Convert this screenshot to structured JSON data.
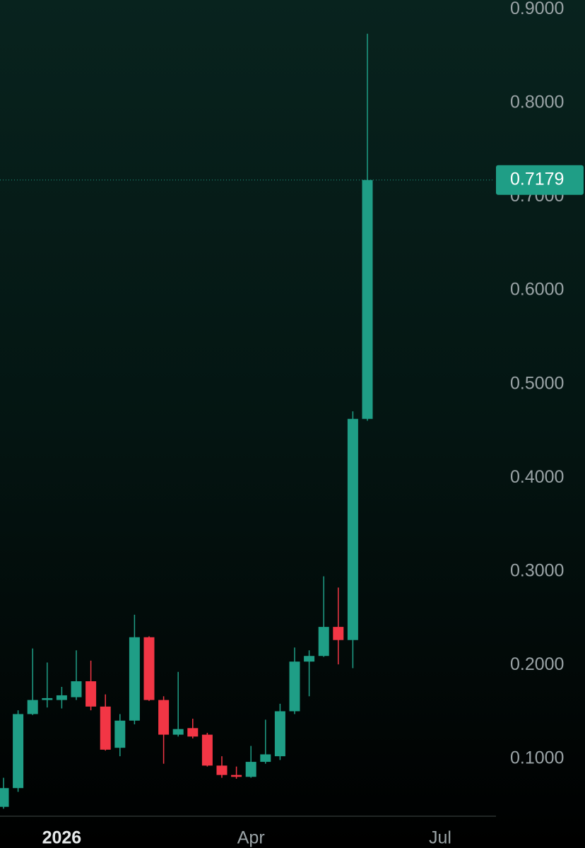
{
  "chart_data": {
    "type": "candlestick",
    "categories": [
      null,
      null,
      null,
      null,
      "2026",
      null,
      null,
      null,
      null,
      null,
      null,
      null,
      null,
      null,
      null,
      null,
      null,
      "Apr",
      null,
      null,
      null,
      null,
      null,
      null,
      null,
      null,
      null,
      null,
      null,
      null,
      "Jul"
    ],
    "open": [
      0.049,
      0.069,
      0.148,
      0.163,
      0.163,
      0.166,
      0.183,
      0.156,
      0.112,
      0.141,
      0.23,
      0.163,
      0.126,
      0.133,
      0.126,
      0.093,
      0.083,
      0.081,
      0.097,
      0.103,
      0.151,
      0.204,
      0.21,
      0.241,
      0.227,
      0.463,
      null,
      null,
      null,
      null,
      null
    ],
    "high": [
      0.08,
      0.152,
      0.218,
      0.203,
      0.177,
      0.216,
      0.205,
      0.169,
      0.148,
      0.254,
      0.231,
      0.167,
      0.193,
      0.143,
      0.128,
      0.103,
      0.092,
      0.114,
      0.142,
      0.159,
      0.219,
      0.216,
      0.295,
      0.283,
      0.471,
      0.874,
      null,
      null,
      null,
      null,
      null
    ],
    "low": [
      0.047,
      0.065,
      0.147,
      0.155,
      0.154,
      0.163,
      0.152,
      0.109,
      0.103,
      0.137,
      0.162,
      0.095,
      0.124,
      0.122,
      0.092,
      0.08,
      0.079,
      0.08,
      0.095,
      0.099,
      0.148,
      0.167,
      0.209,
      0.201,
      0.197,
      0.461,
      null,
      null,
      null,
      null,
      null
    ],
    "close": [
      0.069,
      0.148,
      0.163,
      0.165,
      0.168,
      0.183,
      0.156,
      0.11,
      0.141,
      0.23,
      0.163,
      0.126,
      0.132,
      0.124,
      0.093,
      0.083,
      0.081,
      0.097,
      0.105,
      0.151,
      0.204,
      0.21,
      0.241,
      0.227,
      0.463,
      0.7179,
      null,
      null,
      null,
      null,
      null
    ],
    "up_color": "#1f9e86",
    "down_color": "#f23645",
    "last_price": 0.7179,
    "ylim": [
      0.039,
      0.91
    ],
    "yticks": [
      {
        "value": 0.1,
        "label": "0.1000"
      },
      {
        "value": 0.2,
        "label": "0.2000"
      },
      {
        "value": 0.3,
        "label": "0.3000"
      },
      {
        "value": 0.4,
        "label": "0.4000"
      },
      {
        "value": 0.5,
        "label": "0.5000"
      },
      {
        "value": 0.6,
        "label": "0.6000"
      },
      {
        "value": 0.7,
        "label": "0.7000"
      },
      {
        "value": 0.8,
        "label": "0.8000"
      },
      {
        "value": 0.9,
        "label": "0.9000"
      }
    ]
  }
}
